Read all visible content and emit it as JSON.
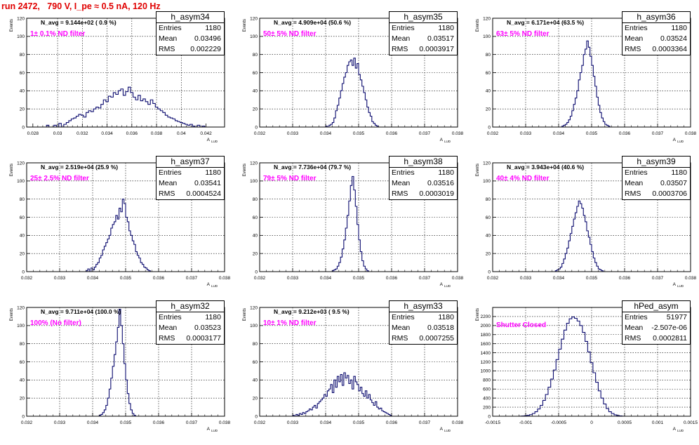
{
  "title": "run 2472,   790 V, I_pe ≈ 0.5 nA, 120 Hz",
  "colors": {
    "histogram": "#0a0a6e",
    "filter_label": "#ff00ff",
    "title": "#e00000"
  },
  "chart_data": [
    {
      "type": "bar",
      "name": "h_asym34",
      "ylabel": "Events",
      "xlabel": "A_LUD",
      "n_avg": "N_avg = 9.144e+02 ( 0.9 %)",
      "filter": "1± 0.1% ND filter",
      "stats": {
        "entries": "1180",
        "mean": "0.03496",
        "rms": "0.002229"
      },
      "xlim": [
        0.0275,
        0.0435
      ],
      "ylim": [
        0,
        120
      ],
      "xticks": [
        0.028,
        0.03,
        0.032,
        0.034,
        0.036,
        0.038,
        0.04,
        0.042
      ],
      "xtick_labels": [
        "0.028",
        "0.03",
        "0.032",
        "0.034",
        "0.036",
        "0.038",
        "0.04",
        "0.042"
      ],
      "yticks": [
        0,
        20,
        40,
        60,
        80,
        100,
        120
      ],
      "bin_start": 0.0285,
      "bin_width": 0.0002,
      "counts": [
        0,
        0,
        0,
        2,
        0,
        0,
        2,
        0,
        4,
        0,
        3,
        5,
        7,
        9,
        10,
        12,
        14,
        13,
        11,
        16,
        18,
        17,
        20,
        22,
        21,
        25,
        30,
        28,
        34,
        33,
        38,
        36,
        40,
        42,
        35,
        39,
        44,
        38,
        33,
        30,
        35,
        29,
        31,
        28,
        25,
        30,
        26,
        22,
        20,
        18,
        16,
        13,
        11,
        10,
        9,
        7,
        6,
        5,
        4,
        3,
        2,
        3,
        1,
        0,
        2,
        0,
        1,
        0,
        0,
        0
      ]
    },
    {
      "type": "bar",
      "name": "h_asym35",
      "ylabel": "Events",
      "xlabel": "A_LUD",
      "n_avg": "N_avg = 4.909e+04 (50.6 %)",
      "filter": "50± 5% ND filter",
      "stats": {
        "entries": "1180",
        "mean": "0.03517",
        "rms": "0.0003917"
      },
      "xlim": [
        0.032,
        0.038
      ],
      "ylim": [
        0,
        120
      ],
      "xticks": [
        0.032,
        0.033,
        0.034,
        0.035,
        0.036,
        0.037,
        0.038
      ],
      "xtick_labels": [
        "0.032",
        "0.033",
        "0.034",
        "0.035",
        "0.036",
        "0.037",
        "0.038"
      ],
      "yticks": [
        0,
        20,
        40,
        60,
        80,
        100,
        120
      ],
      "bin_start": 0.034,
      "bin_width": 5e-05,
      "counts": [
        1,
        0,
        2,
        3,
        5,
        10,
        18,
        24,
        32,
        40,
        48,
        55,
        60,
        68,
        72,
        74,
        68,
        76,
        65,
        70,
        58,
        52,
        45,
        38,
        30,
        22,
        16,
        12,
        6,
        4,
        2,
        1,
        0
      ]
    },
    {
      "type": "bar",
      "name": "h_asym36",
      "ylabel": "Events",
      "xlabel": "A_LUD",
      "n_avg": "N_avg = 6.171e+04 (63.5 %)",
      "filter": "63± 5% ND filter",
      "stats": {
        "entries": "1180",
        "mean": "0.03524",
        "rms": "0.0003364"
      },
      "xlim": [
        0.032,
        0.038
      ],
      "ylim": [
        0,
        120
      ],
      "xticks": [
        0.032,
        0.033,
        0.034,
        0.035,
        0.036,
        0.037,
        0.038
      ],
      "xtick_labels": [
        "0.032",
        "0.033",
        "0.034",
        "0.035",
        "0.036",
        "0.037",
        "0.038"
      ],
      "yticks": [
        0,
        20,
        40,
        60,
        80,
        100,
        120
      ],
      "bin_start": 0.0341,
      "bin_width": 5e-05,
      "counts": [
        1,
        2,
        3,
        5,
        8,
        12,
        18,
        25,
        32,
        40,
        52,
        60,
        68,
        80,
        86,
        95,
        88,
        78,
        68,
        56,
        45,
        33,
        24,
        16,
        10,
        6,
        3,
        2,
        1,
        0
      ]
    },
    {
      "type": "bar",
      "name": "h_asym37",
      "ylabel": "Events",
      "xlabel": "A_LUD",
      "n_avg": "N_avg = 2.519e+04 (25.9 %)",
      "filter": "25± 2.5% ND filter",
      "stats": {
        "entries": "1180",
        "mean": "0.03541",
        "rms": "0.0004524"
      },
      "xlim": [
        0.032,
        0.038
      ],
      "ylim": [
        0,
        120
      ],
      "xticks": [
        0.032,
        0.033,
        0.034,
        0.035,
        0.036,
        0.037,
        0.038
      ],
      "xtick_labels": [
        "0.032",
        "0.033",
        "0.034",
        "0.035",
        "0.036",
        "0.037",
        "0.038"
      ],
      "yticks": [
        0,
        20,
        40,
        60,
        80,
        100,
        120
      ],
      "bin_start": 0.0338,
      "bin_width": 5e-05,
      "counts": [
        1,
        3,
        0,
        4,
        2,
        5,
        8,
        10,
        15,
        18,
        24,
        28,
        32,
        36,
        40,
        48,
        52,
        55,
        62,
        58,
        70,
        66,
        80,
        75,
        60,
        55,
        45,
        40,
        34,
        30,
        22,
        18,
        15,
        10,
        8,
        5,
        4,
        2,
        1,
        0
      ]
    },
    {
      "type": "bar",
      "name": "h_asym38",
      "ylabel": "Events",
      "xlabel": "A_LUD",
      "n_avg": "N_avg = 7.736e+04 (79.7 %)",
      "filter": "79± 5% ND filter",
      "stats": {
        "entries": "1180",
        "mean": "0.03516",
        "rms": "0.0003019"
      },
      "xlim": [
        0.032,
        0.038
      ],
      "ylim": [
        0,
        120
      ],
      "xticks": [
        0.032,
        0.033,
        0.034,
        0.035,
        0.036,
        0.037,
        0.038
      ],
      "xtick_labels": [
        "0.032",
        "0.033",
        "0.034",
        "0.035",
        "0.036",
        "0.037",
        "0.038"
      ],
      "yticks": [
        0,
        20,
        40,
        60,
        80,
        100,
        120
      ],
      "bin_start": 0.0342,
      "bin_width": 5e-05,
      "counts": [
        1,
        2,
        3,
        6,
        10,
        16,
        25,
        35,
        48,
        62,
        78,
        95,
        105,
        90,
        72,
        52,
        35,
        22,
        12,
        6,
        3,
        1,
        0
      ]
    },
    {
      "type": "bar",
      "name": "h_asym39",
      "ylabel": "Events",
      "xlabel": "A_LUD",
      "n_avg": "N_avg = 3.943e+04 (40.6 %)",
      "filter": "40± 4% ND filter",
      "stats": {
        "entries": "1180",
        "mean": "0.03507",
        "rms": "0.0003706"
      },
      "xlim": [
        0.032,
        0.038
      ],
      "ylim": [
        0,
        120
      ],
      "xticks": [
        0.032,
        0.033,
        0.034,
        0.035,
        0.036,
        0.037,
        0.038
      ],
      "xtick_labels": [
        "0.032",
        "0.033",
        "0.034",
        "0.035",
        "0.036",
        "0.037",
        "0.038"
      ],
      "yticks": [
        0,
        20,
        40,
        60,
        80,
        100,
        120
      ],
      "bin_start": 0.0339,
      "bin_width": 5e-05,
      "counts": [
        1,
        2,
        3,
        5,
        9,
        14,
        20,
        26,
        34,
        42,
        50,
        58,
        65,
        72,
        78,
        75,
        70,
        62,
        55,
        45,
        38,
        30,
        22,
        15,
        10,
        6,
        3,
        2,
        1,
        0
      ]
    },
    {
      "type": "bar",
      "name": "h_asym32",
      "ylabel": "Events",
      "xlabel": "A_LUD",
      "n_avg": "N_avg = 9.711e+04 (100.0 %)",
      "filter": "100% (No filter)",
      "stats": {
        "entries": "1180",
        "mean": "0.03523",
        "rms": "0.0003177"
      },
      "xlim": [
        0.032,
        0.038
      ],
      "ylim": [
        0,
        120
      ],
      "xticks": [
        0.032,
        0.033,
        0.034,
        0.035,
        0.036,
        0.037,
        0.038
      ],
      "xtick_labels": [
        "0.032",
        "0.033",
        "0.034",
        "0.035",
        "0.036",
        "0.037",
        "0.038"
      ],
      "yticks": [
        0,
        20,
        40,
        60,
        80,
        100,
        120
      ],
      "bin_start": 0.0342,
      "bin_width": 5e-05,
      "counts": [
        1,
        2,
        4,
        7,
        12,
        20,
        30,
        42,
        55,
        68,
        82,
        98,
        118,
        100,
        80,
        58,
        40,
        25,
        14,
        7,
        3,
        1,
        0
      ]
    },
    {
      "type": "bar",
      "name": "h_asym33",
      "ylabel": "Events",
      "xlabel": "A_LUD",
      "n_avg": "N_avg = 9.212e+03 ( 9.5 %)",
      "filter": "10± 1% ND filter",
      "stats": {
        "entries": "1180",
        "mean": "0.03518",
        "rms": "0.0007255"
      },
      "xlim": [
        0.032,
        0.038
      ],
      "ylim": [
        0,
        120
      ],
      "xticks": [
        0.032,
        0.033,
        0.034,
        0.035,
        0.036,
        0.037,
        0.038
      ],
      "xtick_labels": [
        "0.032",
        "0.033",
        "0.034",
        "0.035",
        "0.036",
        "0.037",
        "0.038"
      ],
      "yticks": [
        0,
        20,
        40,
        60,
        80,
        100,
        120
      ],
      "bin_start": 0.033,
      "bin_width": 5e-05,
      "counts": [
        1,
        0,
        2,
        1,
        3,
        2,
        4,
        3,
        5,
        6,
        8,
        7,
        10,
        12,
        9,
        14,
        16,
        18,
        20,
        24,
        22,
        28,
        30,
        35,
        26,
        40,
        32,
        44,
        38,
        46,
        34,
        48,
        42,
        45,
        36,
        40,
        30,
        44,
        38,
        35,
        28,
        32,
        25,
        22,
        28,
        20,
        24,
        18,
        15,
        12,
        16,
        10,
        8,
        9,
        6,
        5,
        4,
        3,
        2,
        1,
        0
      ]
    },
    {
      "type": "bar",
      "name": "hPed_asym",
      "ylabel": "Events",
      "xlabel": "A_LUD",
      "n_avg": "",
      "filter": "Shutter Closed",
      "stats": {
        "entries": "51977",
        "mean": "-2.507e-06",
        "rms": "0.0002811"
      },
      "xlim": [
        -0.0015,
        0.0015
      ],
      "ylim": [
        0,
        2400
      ],
      "xticks": [
        -0.0015,
        -0.001,
        -0.0005,
        0,
        0.0005,
        0.001,
        0.0015
      ],
      "xtick_labels": [
        "-0.0015",
        "-0.001",
        "-0.0005",
        "0",
        "0.0005",
        "0.001",
        "0.0015"
      ],
      "yticks": [
        0,
        200,
        400,
        600,
        800,
        1000,
        1200,
        1400,
        1600,
        1800,
        2000,
        2200
      ],
      "bin_start": -0.0011,
      "bin_width": 4e-05,
      "counts": [
        2,
        5,
        10,
        20,
        35,
        60,
        100,
        160,
        240,
        350,
        480,
        640,
        820,
        1020,
        1250,
        1480,
        1700,
        1900,
        2050,
        2150,
        2190,
        2160,
        2100,
        2000,
        1850,
        1650,
        1420,
        1180,
        960,
        750,
        560,
        400,
        270,
        170,
        100,
        60,
        30,
        15,
        6,
        2,
        0
      ]
    }
  ]
}
